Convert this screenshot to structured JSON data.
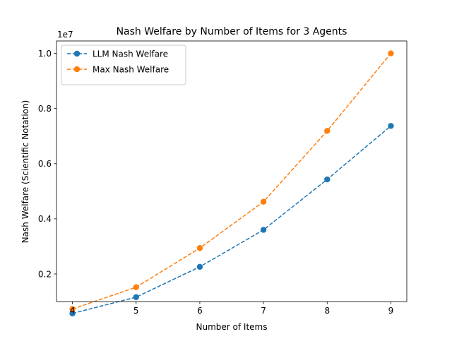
{
  "chart_data": {
    "type": "line",
    "title": "Nash Welfare by Number of Items for 3 Agents",
    "xlabel": "Number of Items",
    "ylabel": "Nash Welfare (Scientific Notation)",
    "y_offset_label": "1e7",
    "x": [
      4,
      5,
      6,
      7,
      8,
      9
    ],
    "xlim": [
      3.75,
      9.25
    ],
    "ylim": [
      1000000,
      10450000
    ],
    "x_ticks": [
      4,
      5,
      6,
      7,
      8,
      9
    ],
    "y_ticks": [
      2000000,
      4000000,
      6000000,
      8000000,
      10000000
    ],
    "y_tick_labels": [
      "0.2",
      "0.4",
      "0.6",
      "0.8",
      "1.0"
    ],
    "grid": false,
    "legend_position": "upper-left",
    "series": [
      {
        "name": "LLM Nash Welfare",
        "color": "#1f77b4",
        "linestyle": "dashed",
        "marker": "circle",
        "values": [
          570000,
          1160000,
          2260000,
          3600000,
          5430000,
          7370000
        ]
      },
      {
        "name": "Max Nash Welfare",
        "color": "#ff7f0e",
        "linestyle": "dashed",
        "marker": "circle",
        "values": [
          730000,
          1520000,
          2940000,
          4620000,
          7190000,
          10000000
        ]
      }
    ]
  }
}
